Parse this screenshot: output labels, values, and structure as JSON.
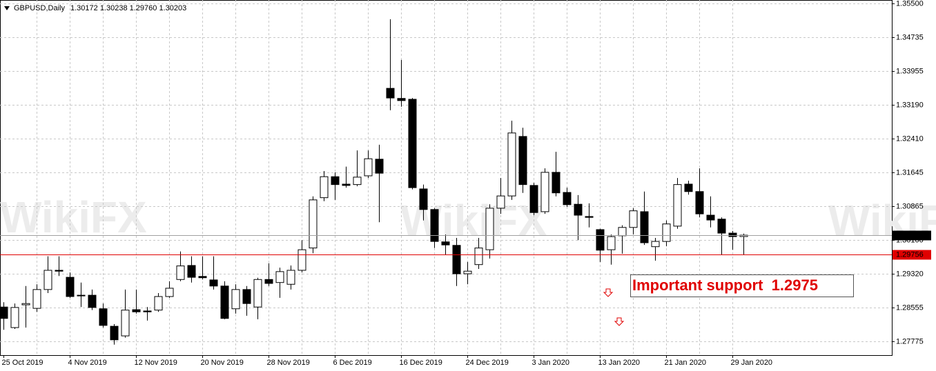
{
  "chart_data": {
    "type": "candlestick",
    "title": "GBPUSD,Daily",
    "ohlc_label": "1.30172 1.30238 1.29760 1.30203",
    "watermark": "WikiFX",
    "categories": [
      "25 Oct 2019",
      null,
      null,
      null,
      null,
      null,
      "4 Nov 2019",
      null,
      null,
      null,
      null,
      null,
      "12 Nov 2019",
      null,
      null,
      null,
      null,
      null,
      "20 Nov 2019",
      null,
      null,
      null,
      null,
      null,
      "28 Nov 2019",
      null,
      null,
      null,
      null,
      null,
      "6 Dec 2019",
      null,
      null,
      null,
      null,
      null,
      "16 Dec 2019",
      null,
      null,
      null,
      null,
      null,
      "24 Dec 2019",
      null,
      null,
      null,
      null,
      null,
      "3 Jan 2020",
      null,
      null,
      null,
      null,
      null,
      "13 Jan 2020",
      null,
      null,
      null,
      null,
      null,
      "21 Jan 2020",
      null,
      null,
      null,
      null,
      null,
      "29 Jan 2020",
      null
    ],
    "open": [
      1.2856,
      1.2809,
      1.2861,
      1.2853,
      1.2896,
      1.294,
      1.2924,
      1.2883,
      1.2883,
      1.2852,
      1.2812,
      1.279,
      1.285,
      1.2847,
      1.2849,
      1.288,
      1.2919,
      1.2951,
      1.2926,
      1.2918,
      1.2904,
      1.2852,
      1.2896,
      1.2856,
      1.2919,
      1.2912,
      1.2908,
      1.294,
      1.2991,
      1.3106,
      1.3154,
      1.3137,
      1.3136,
      1.3156,
      1.3194,
      1.3356,
      1.3333,
      1.3331,
      1.3126,
      1.3079,
      1.3005,
      1.2997,
      1.2932,
      1.2953,
      1.2987,
      1.3082,
      1.311,
      1.3246,
      1.3134,
      1.3074,
      1.3164,
      1.3118,
      1.3091,
      1.3063,
      1.3033,
      1.2987,
      1.3019,
      1.3038,
      1.3074,
      1.2994,
      1.3006,
      1.3041,
      1.3137,
      1.312,
      1.3066,
      1.3057,
      1.3025,
      1.30172
    ],
    "high": [
      1.2867,
      1.2864,
      1.2904,
      1.2908,
      1.2972,
      1.2972,
      1.2935,
      1.2912,
      1.2896,
      1.2864,
      1.2817,
      1.2896,
      1.2896,
      1.2856,
      1.2888,
      1.2915,
      1.2983,
      1.2972,
      1.2972,
      1.2972,
      1.2915,
      1.2908,
      1.2904,
      1.2923,
      1.2956,
      1.2946,
      1.2951,
      1.3009,
      1.3109,
      1.3167,
      1.3164,
      1.3177,
      1.3214,
      1.3214,
      1.3227,
      1.3514,
      1.3421,
      1.3334,
      1.3136,
      1.3082,
      1.3022,
      1.3014,
      1.2959,
      1.3014,
      1.3091,
      1.3151,
      1.3282,
      1.3266,
      1.314,
      1.3173,
      1.3211,
      1.3129,
      1.3112,
      1.3093,
      1.3035,
      1.3022,
      1.3043,
      1.3082,
      1.312,
      1.3014,
      1.3054,
      1.3151,
      1.3145,
      1.3173,
      1.3109,
      1.3061,
      1.303,
      1.30238
    ],
    "low": [
      1.2804,
      1.2806,
      1.2809,
      1.2845,
      1.2888,
      1.2927,
      1.2877,
      1.2856,
      1.2849,
      1.2809,
      1.277,
      1.2786,
      1.2841,
      1.2825,
      1.2845,
      1.2877,
      1.2915,
      1.2912,
      1.2919,
      1.2896,
      1.2828,
      1.2841,
      1.2836,
      1.2828,
      1.2904,
      1.2877,
      1.2896,
      1.2935,
      1.2979,
      1.3098,
      1.3101,
      1.3129,
      1.3132,
      1.3151,
      1.305,
      1.3306,
      1.3314,
      1.3125,
      1.3054,
      1.2991,
      1.2975,
      1.2904,
      1.2908,
      1.2943,
      1.2967,
      1.3069,
      1.3101,
      1.3117,
      1.3066,
      1.3069,
      1.3109,
      1.3085,
      1.3009,
      1.3038,
      1.2959,
      1.2953,
      1.2978,
      1.3022,
      1.2998,
      1.2962,
      1.2995,
      1.3035,
      1.3113,
      1.3061,
      1.3038,
      1.2975,
      1.2987,
      1.2976
    ],
    "close": [
      1.283,
      1.2855,
      1.2864,
      1.2896,
      1.294,
      1.2938,
      1.288,
      1.2882,
      1.2855,
      1.2814,
      1.2781,
      1.2849,
      1.2845,
      1.2845,
      1.288,
      1.2899,
      1.295,
      1.2924,
      1.2923,
      1.2904,
      1.283,
      1.2896,
      1.2864,
      1.2919,
      1.291,
      1.2937,
      1.294,
      1.2987,
      1.3101,
      1.3154,
      1.3136,
      1.3134,
      1.3153,
      1.3195,
      1.3162,
      1.3334,
      1.3328,
      1.3129,
      1.3079,
      1.3006,
      1.2998,
      1.2932,
      1.2938,
      1.2991,
      1.3082,
      1.311,
      1.3254,
      1.3136,
      1.3072,
      1.3164,
      1.3117,
      1.309,
      1.3066,
      1.3061,
      1.2986,
      1.3017,
      1.3038,
      1.3076,
      1.3003,
      1.3006,
      1.3046,
      1.3136,
      1.312,
      1.3069,
      1.3055,
      1.3025,
      1.3017,
      1.30203
    ],
    "up_color": "#ffffff",
    "down_color": "#000000",
    "ylim": [
      1.2746,
      1.3558
    ],
    "yticks": [
      {
        "value": 1.355,
        "label": "1.35500"
      },
      1.34735,
      {
        "value": 1.33955,
        "label": "1.33955"
      },
      {
        "value": 1.3319,
        "label": "1.33190"
      },
      {
        "value": 1.3241,
        "label": "1.32410"
      },
      1.31645,
      1.30865,
      {
        "value": 1.301,
        "label": "1.30100"
      },
      {
        "value": 1.2932,
        "label": "1.29320"
      },
      1.28555,
      1.27775
    ],
    "grid": true,
    "support_line": {
      "value": 1.29756,
      "color": "#e00000"
    },
    "annotation": "Important support  1.2975"
  }
}
